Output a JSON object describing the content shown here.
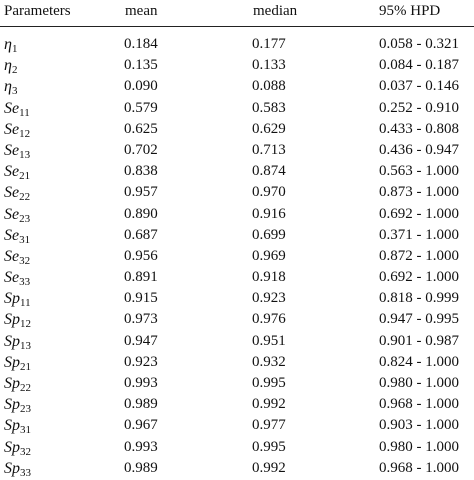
{
  "table": {
    "headers": [
      "Parameters",
      "mean",
      "median",
      "95% HPD"
    ],
    "rows": [
      {
        "param_symbol": "η",
        "param_sub": "1",
        "mean": "0.184",
        "median": "0.177",
        "hpd": "0.058 - 0.321"
      },
      {
        "param_symbol": "η",
        "param_sub": "2",
        "mean": "0.135",
        "median": "0.133",
        "hpd": "0.084 - 0.187"
      },
      {
        "param_symbol": "η",
        "param_sub": "3",
        "mean": "0.090",
        "median": "0.088",
        "hpd": "0.037 - 0.146"
      },
      {
        "param_symbol": "Se",
        "param_sub": "11",
        "mean": "0.579",
        "median": "0.583",
        "hpd": "0.252 - 0.910"
      },
      {
        "param_symbol": "Se",
        "param_sub": "12",
        "mean": "0.625",
        "median": "0.629",
        "hpd": "0.433 - 0.808"
      },
      {
        "param_symbol": "Se",
        "param_sub": "13",
        "mean": "0.702",
        "median": "0.713",
        "hpd": "0.436 - 0.947"
      },
      {
        "param_symbol": "Se",
        "param_sub": "21",
        "mean": "0.838",
        "median": "0.874",
        "hpd": "0.563 - 1.000"
      },
      {
        "param_symbol": "Se",
        "param_sub": "22",
        "mean": "0.957",
        "median": "0.970",
        "hpd": "0.873 - 1.000"
      },
      {
        "param_symbol": "Se",
        "param_sub": "23",
        "mean": "0.890",
        "median": "0.916",
        "hpd": "0.692 - 1.000"
      },
      {
        "param_symbol": "Se",
        "param_sub": "31",
        "mean": "0.687",
        "median": "0.699",
        "hpd": "0.371 - 1.000"
      },
      {
        "param_symbol": "Se",
        "param_sub": "32",
        "mean": "0.956",
        "median": "0.969",
        "hpd": "0.872 - 1.000"
      },
      {
        "param_symbol": "Se",
        "param_sub": "33",
        "mean": "0.891",
        "median": "0.918",
        "hpd": "0.692 - 1.000"
      },
      {
        "param_symbol": "Sp",
        "param_sub": "11",
        "mean": "0.915",
        "median": "0.923",
        "hpd": "0.818 - 0.999"
      },
      {
        "param_symbol": "Sp",
        "param_sub": "12",
        "mean": "0.973",
        "median": "0.976",
        "hpd": "0.947 - 0.995"
      },
      {
        "param_symbol": "Sp",
        "param_sub": "13",
        "mean": "0.947",
        "median": "0.951",
        "hpd": "0.901 - 0.987"
      },
      {
        "param_symbol": "Sp",
        "param_sub": "21",
        "mean": "0.923",
        "median": "0.932",
        "hpd": "0.824 - 1.000"
      },
      {
        "param_symbol": "Sp",
        "param_sub": "22",
        "mean": "0.993",
        "median": "0.995",
        "hpd": "0.980 - 1.000"
      },
      {
        "param_symbol": "Sp",
        "param_sub": "23",
        "mean": "0.989",
        "median": "0.992",
        "hpd": "0.968 - 1.000"
      },
      {
        "param_symbol": "Sp",
        "param_sub": "31",
        "mean": "0.967",
        "median": "0.977",
        "hpd": "0.903 - 1.000"
      },
      {
        "param_symbol": "Sp",
        "param_sub": "32",
        "mean": "0.993",
        "median": "0.995",
        "hpd": "0.980 - 1.000"
      },
      {
        "param_symbol": "Sp",
        "param_sub": "33",
        "mean": "0.989",
        "median": "0.992",
        "hpd": "0.968 - 1.000"
      }
    ]
  }
}
